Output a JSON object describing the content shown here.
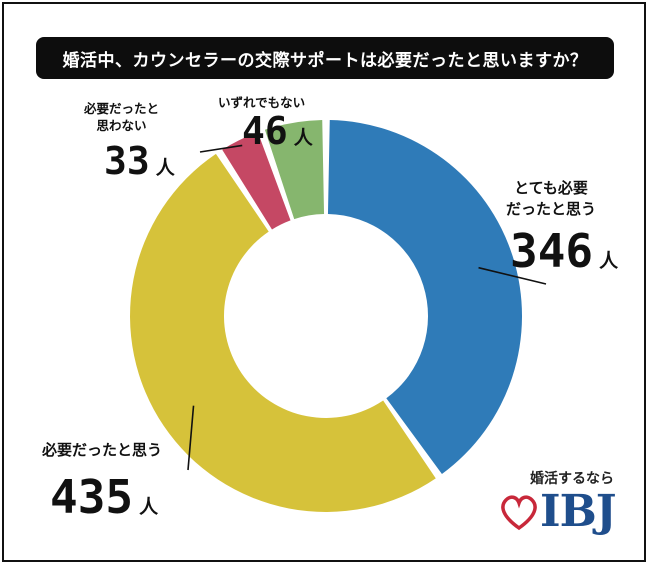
{
  "title": "婚活中、カウンセラーの交際サポートは必要だったと思いますか？",
  "unit": "人",
  "brand": {
    "tagline": "婚活するなら",
    "logo_text": "IBJ",
    "logo_color": "#1f4e8c",
    "heart_color": "#c8283a"
  },
  "chart_data": {
    "type": "pie",
    "title": "婚活中、カウンセラーの交際サポートは必要だったと思いますか？",
    "categories": [
      "とても必要だったと思う",
      "必要だったと思う",
      "必要だったと思わない",
      "いずれでもない"
    ],
    "values": [
      346,
      435,
      33,
      46
    ],
    "colors": [
      "#2f7bb8",
      "#d6c23a",
      "#c54864",
      "#86b66e"
    ],
    "start_angle_deg": 0,
    "direction": "clockwise",
    "donut": true
  },
  "labels": [
    {
      "category_lines": [
        "とても必要",
        "だったと思う"
      ],
      "value": "346"
    },
    {
      "category_lines": [
        "必要だったと思う"
      ],
      "value": "435"
    },
    {
      "category_lines": [
        "必要だったと",
        "思わない"
      ],
      "value": "33"
    },
    {
      "category_lines": [
        "いずれでもない"
      ],
      "value": "46"
    }
  ]
}
